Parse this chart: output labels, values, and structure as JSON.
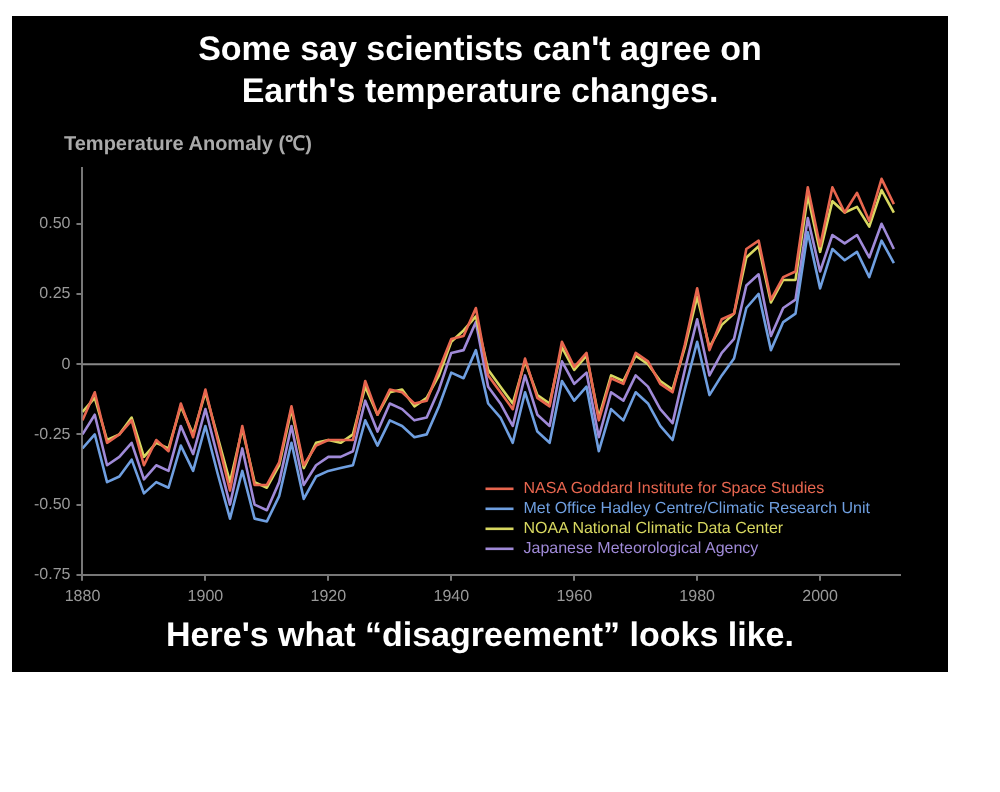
{
  "chart_data": {
    "type": "line",
    "title": "Some say scientists can't agree on Earth's temperature changes.",
    "ylabel": "Temperature Anomaly (℃)",
    "annotations": [
      "Here's what “disagreement” looks like."
    ],
    "x": [
      1880,
      1882,
      1884,
      1886,
      1888,
      1890,
      1892,
      1894,
      1896,
      1898,
      1900,
      1902,
      1904,
      1906,
      1908,
      1910,
      1912,
      1914,
      1916,
      1918,
      1920,
      1922,
      1924,
      1926,
      1928,
      1930,
      1932,
      1934,
      1936,
      1938,
      1940,
      1942,
      1944,
      1946,
      1948,
      1950,
      1952,
      1954,
      1956,
      1958,
      1960,
      1962,
      1964,
      1966,
      1968,
      1970,
      1972,
      1974,
      1976,
      1978,
      1980,
      1982,
      1984,
      1986,
      1988,
      1990,
      1992,
      1994,
      1996,
      1998,
      2000,
      2002,
      2004,
      2006,
      2008,
      2010,
      2012
    ],
    "series": [
      {
        "name": "NASA Goddard Institute for Space Studies",
        "color": "#e8664f",
        "values": [
          -0.2,
          -0.1,
          -0.28,
          -0.25,
          -0.2,
          -0.36,
          -0.27,
          -0.31,
          -0.14,
          -0.26,
          -0.09,
          -0.27,
          -0.45,
          -0.22,
          -0.43,
          -0.43,
          -0.35,
          -0.15,
          -0.36,
          -0.29,
          -0.27,
          -0.27,
          -0.27,
          -0.06,
          -0.18,
          -0.09,
          -0.1,
          -0.14,
          -0.13,
          -0.02,
          0.09,
          0.1,
          0.2,
          -0.04,
          -0.1,
          -0.16,
          0.02,
          -0.12,
          -0.15,
          0.08,
          -0.01,
          0.04,
          -0.2,
          -0.05,
          -0.07,
          0.04,
          0.01,
          -0.07,
          -0.1,
          0.07,
          0.27,
          0.05,
          0.16,
          0.18,
          0.41,
          0.44,
          0.23,
          0.31,
          0.33,
          0.63,
          0.42,
          0.63,
          0.54,
          0.61,
          0.51,
          0.66,
          0.57
        ]
      },
      {
        "name": "Met Office Hadley Centre/Climatic Research Unit",
        "color": "#6f9fe0",
        "values": [
          -0.3,
          -0.25,
          -0.42,
          -0.4,
          -0.34,
          -0.46,
          -0.42,
          -0.44,
          -0.29,
          -0.38,
          -0.22,
          -0.39,
          -0.55,
          -0.38,
          -0.55,
          -0.56,
          -0.47,
          -0.28,
          -0.48,
          -0.4,
          -0.38,
          -0.37,
          -0.36,
          -0.2,
          -0.29,
          -0.2,
          -0.22,
          -0.26,
          -0.25,
          -0.15,
          -0.03,
          -0.05,
          0.05,
          -0.14,
          -0.19,
          -0.28,
          -0.1,
          -0.24,
          -0.28,
          -0.06,
          -0.13,
          -0.08,
          -0.31,
          -0.16,
          -0.2,
          -0.1,
          -0.14,
          -0.22,
          -0.27,
          -0.09,
          0.08,
          -0.11,
          -0.04,
          0.02,
          0.2,
          0.25,
          0.05,
          0.15,
          0.18,
          0.47,
          0.27,
          0.41,
          0.37,
          0.4,
          0.31,
          0.44,
          0.36
        ]
      },
      {
        "name": "NOAA National Climatic Data Center",
        "color": "#d8d860",
        "values": [
          -0.17,
          -0.12,
          -0.27,
          -0.25,
          -0.19,
          -0.33,
          -0.28,
          -0.3,
          -0.15,
          -0.25,
          -0.1,
          -0.26,
          -0.42,
          -0.23,
          -0.42,
          -0.44,
          -0.36,
          -0.16,
          -0.37,
          -0.28,
          -0.27,
          -0.28,
          -0.25,
          -0.08,
          -0.18,
          -0.1,
          -0.09,
          -0.15,
          -0.12,
          -0.04,
          0.08,
          0.12,
          0.17,
          -0.02,
          -0.08,
          -0.14,
          0.01,
          -0.11,
          -0.14,
          0.06,
          -0.02,
          0.03,
          -0.19,
          -0.04,
          -0.06,
          0.03,
          0.0,
          -0.06,
          -0.09,
          0.06,
          0.24,
          0.06,
          0.14,
          0.18,
          0.38,
          0.42,
          0.22,
          0.3,
          0.3,
          0.6,
          0.4,
          0.58,
          0.54,
          0.56,
          0.49,
          0.62,
          0.54
        ]
      },
      {
        "name": "Japanese Meteorological Agency",
        "color": "#a08ad8",
        "values": [
          -0.25,
          -0.18,
          -0.36,
          -0.33,
          -0.28,
          -0.41,
          -0.36,
          -0.38,
          -0.22,
          -0.32,
          -0.16,
          -0.33,
          -0.5,
          -0.3,
          -0.5,
          -0.52,
          -0.42,
          -0.22,
          -0.43,
          -0.36,
          -0.33,
          -0.33,
          -0.31,
          -0.13,
          -0.24,
          -0.14,
          -0.16,
          -0.2,
          -0.19,
          -0.09,
          0.04,
          0.05,
          0.15,
          -0.08,
          -0.14,
          -0.22,
          -0.04,
          -0.18,
          -0.22,
          0.01,
          -0.07,
          -0.03,
          -0.26,
          -0.1,
          -0.13,
          -0.04,
          -0.08,
          -0.16,
          -0.21,
          -0.02,
          0.16,
          -0.04,
          0.04,
          0.09,
          0.28,
          0.32,
          0.1,
          0.2,
          0.23,
          0.52,
          0.33,
          0.46,
          0.43,
          0.46,
          0.38,
          0.5,
          0.41
        ]
      }
    ],
    "xlim": [
      1880,
      2013
    ],
    "xticks": [
      1880,
      1900,
      1920,
      1940,
      1960,
      1980,
      2000
    ],
    "ylim": [
      -0.75,
      0.7
    ],
    "yticks": [
      {
        "value": -0.75,
        "label": "-0.75"
      },
      {
        "value": -0.5,
        "label": "-0.50"
      },
      {
        "value": -0.25,
        "label": "-0.25"
      },
      0,
      {
        "value": 0.25,
        "label": "0.25"
      },
      {
        "value": 0.5,
        "label": "0.50"
      }
    ],
    "ref_lines": [
      {
        "axis": "y",
        "value": 0,
        "color": "#888888"
      }
    ],
    "grid": false,
    "legend": "bottom right",
    "marker": "none",
    "line_style": "solid"
  }
}
